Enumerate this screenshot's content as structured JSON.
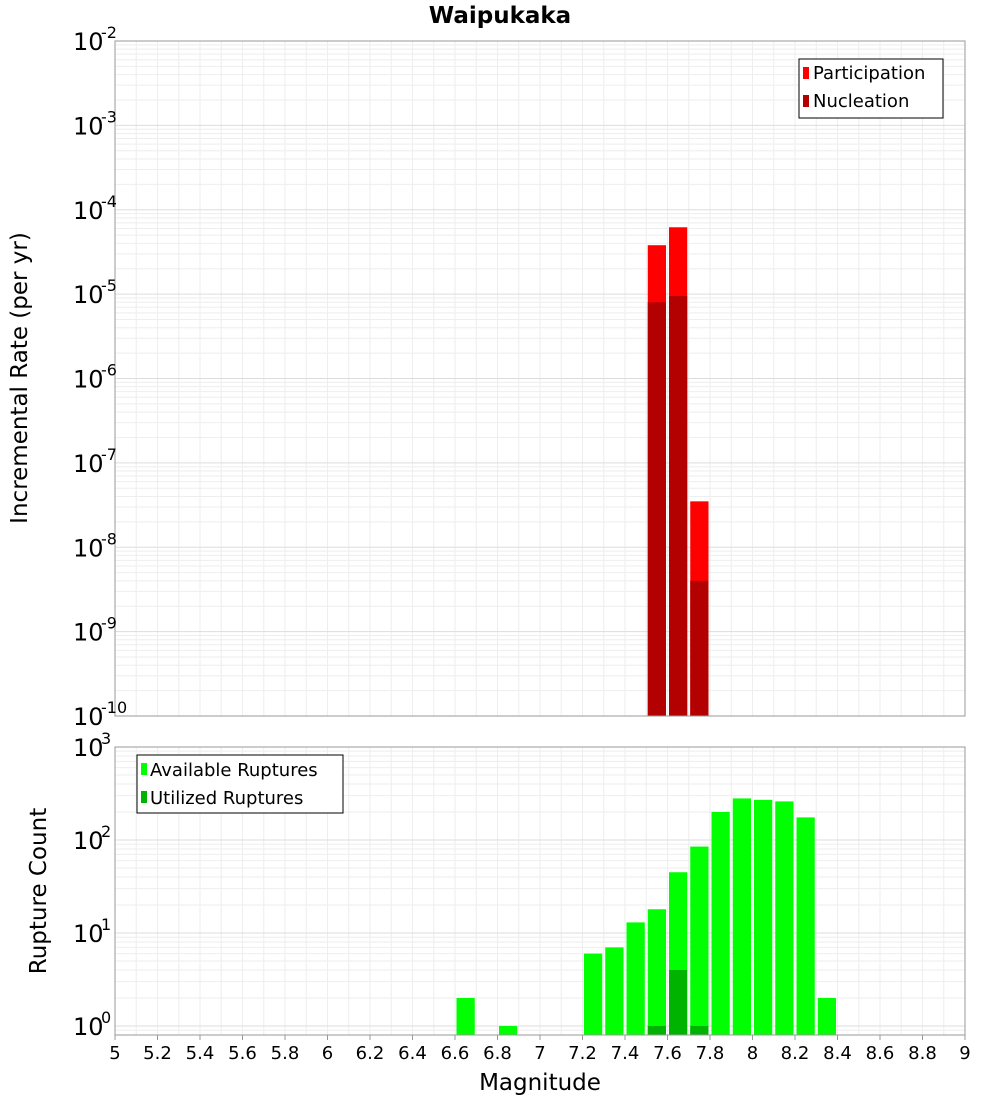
{
  "chart_data": [
    {
      "type": "bar",
      "title": "Waipukaka",
      "xlabel": "Magnitude",
      "ylabel": "Incremental Rate (per yr)",
      "yscale": "log",
      "ylim": [
        1e-10,
        0.01
      ],
      "xlim": [
        5,
        9
      ],
      "bin_width": 0.1,
      "y_tick_exponents": [
        "-10",
        "-9",
        "-8",
        "-7",
        "-6",
        "-5",
        "-4",
        "-3",
        "-2"
      ],
      "legend": {
        "position": "top-right",
        "entries": [
          "Participation",
          "Nucleation"
        ]
      },
      "series": [
        {
          "name": "Participation",
          "color": "#ff0000",
          "x": [
            7.55,
            7.65,
            7.75
          ],
          "values": [
            3.8e-05,
            6.2e-05,
            3.5e-08
          ]
        },
        {
          "name": "Nucleation",
          "color": "#b30000",
          "x": [
            7.55,
            7.65,
            7.75
          ],
          "values": [
            8e-06,
            9.5e-06,
            4e-09
          ]
        }
      ]
    },
    {
      "type": "bar",
      "title": "",
      "xlabel": "Magnitude",
      "ylabel": "Rupture Count",
      "yscale": "log",
      "ylim": [
        0.8,
        1000
      ],
      "xlim": [
        5,
        9
      ],
      "bin_width": 0.1,
      "y_tick_exponents": [
        "0",
        "1",
        "2",
        "3"
      ],
      "x_ticks": [
        "5",
        "5.2",
        "5.4",
        "5.6",
        "5.8",
        "6",
        "6.2",
        "6.4",
        "6.6",
        "6.8",
        "7",
        "7.2",
        "7.4",
        "7.6",
        "7.8",
        "8",
        "8.2",
        "8.4",
        "8.6",
        "8.8",
        "9"
      ],
      "legend": {
        "position": "top-left",
        "entries": [
          "Available Ruptures",
          "Utilized Ruptures"
        ]
      },
      "series": [
        {
          "name": "Available Ruptures",
          "color": "#00ff00",
          "x": [
            6.65,
            6.85,
            7.25,
            7.35,
            7.45,
            7.55,
            7.65,
            7.75,
            7.85,
            7.95,
            8.05,
            8.15,
            8.25,
            8.35
          ],
          "values": [
            2,
            1,
            6,
            7,
            13,
            18,
            45,
            85,
            200,
            280,
            270,
            260,
            175,
            2
          ]
        },
        {
          "name": "Utilized Ruptures",
          "color": "#00b300",
          "x": [
            7.55,
            7.65,
            7.75
          ],
          "values": [
            1,
            4,
            1
          ]
        }
      ]
    }
  ]
}
